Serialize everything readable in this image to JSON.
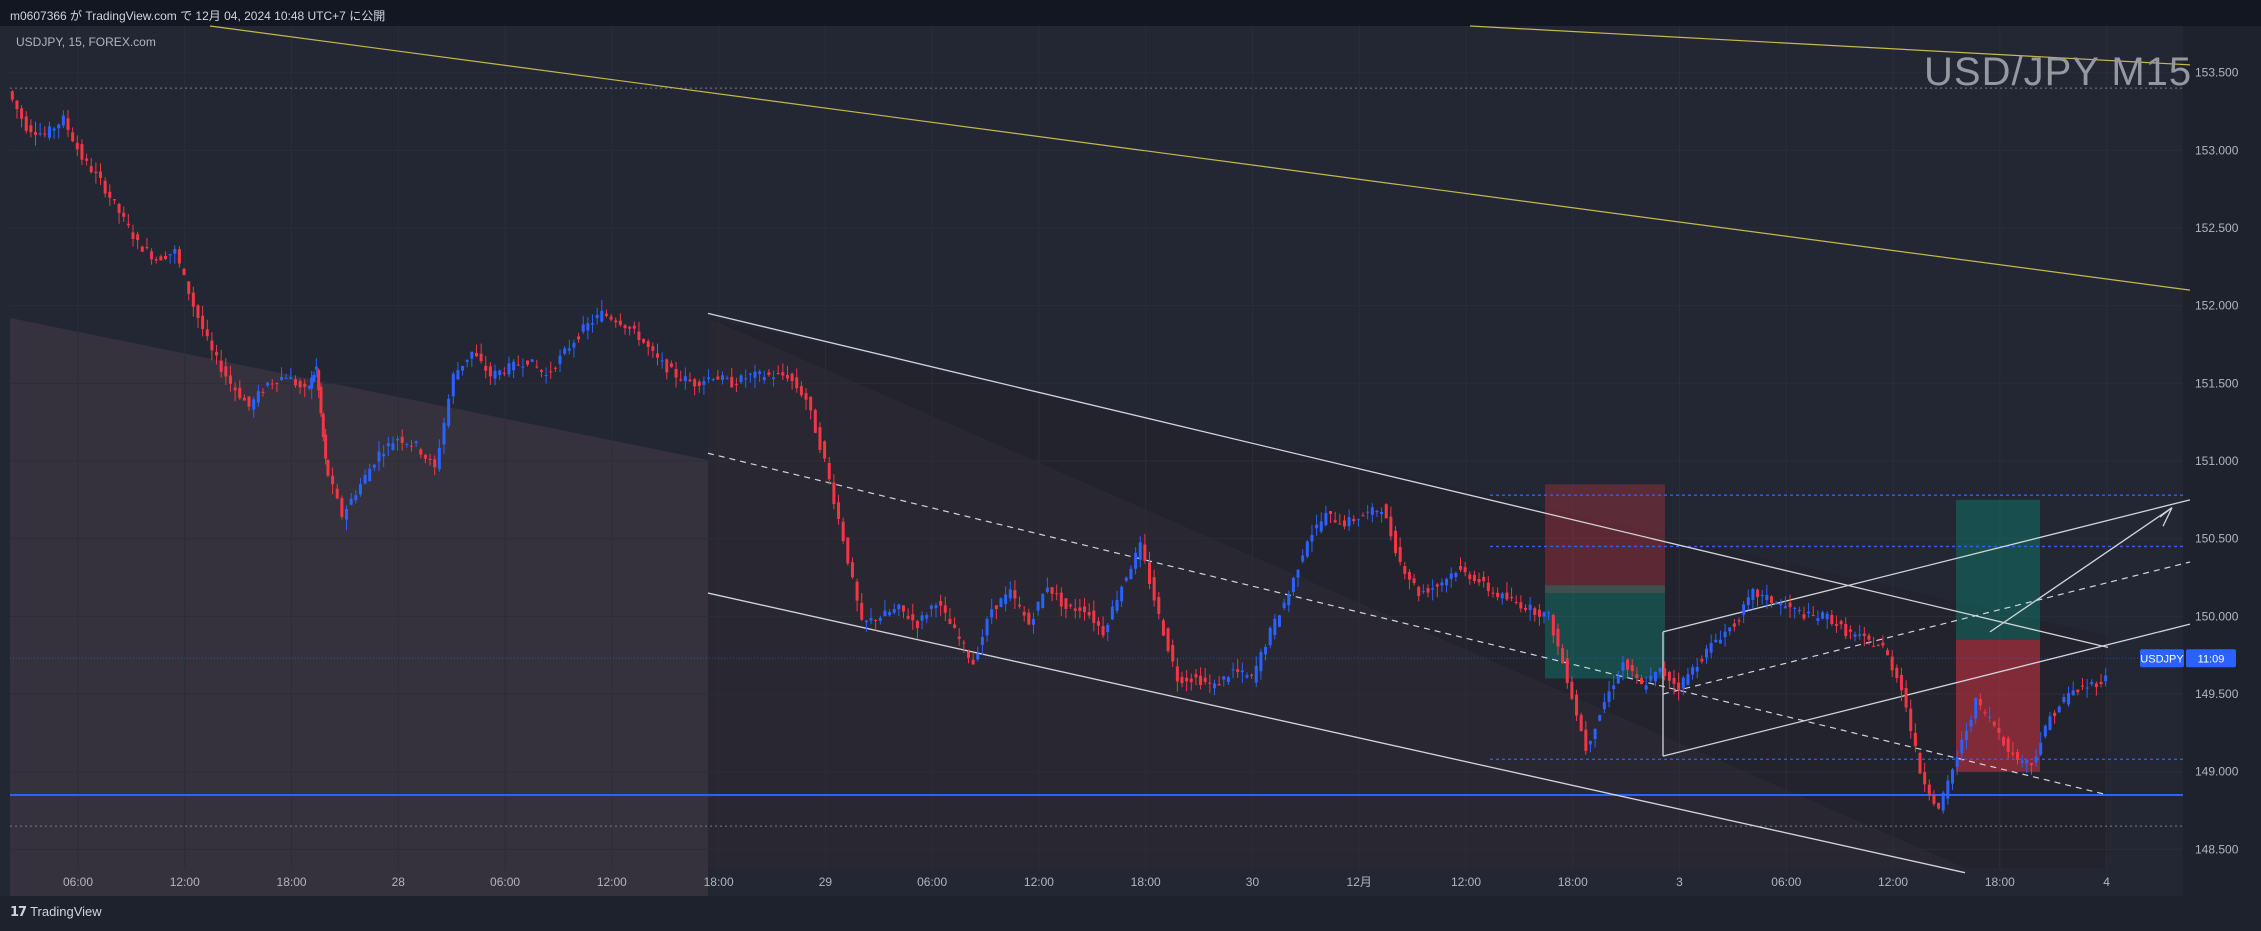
{
  "header": {
    "publish_line": "m0607366 が TradingView.com で 12月 04, 2024 10:48 UTC+7 に公開"
  },
  "symbol_line": "USDJPY, 15, FOREX.com",
  "watermark": "USD/JPY M15",
  "footer": {
    "logo_icon": "tradingview-logo-icon",
    "logo_text": "TradingView"
  },
  "colors": {
    "background": "#1e222d",
    "chart_bg": "#242733",
    "up": "#2962ff",
    "down": "#f23645",
    "trend_yellow": "#c8b84a",
    "channel_white": "#d1d4dc",
    "hline_blue": "#2962ff",
    "price_tag": "#2962ff"
  },
  "price_tag": {
    "symbol": "USDJPY",
    "value": "11:09"
  },
  "chart_data": {
    "type": "candlestick",
    "symbol": "USDJPY",
    "interval": "15",
    "ylim": [
      148.2,
      153.8
    ],
    "y_ticks": [
      "153.500",
      "153.000",
      "152.500",
      "152.000",
      "151.500",
      "151.000",
      "150.500",
      "150.000",
      "149.500",
      "149.000",
      "148.500"
    ],
    "x_ticks": [
      "06:00",
      "12:00",
      "18:00",
      "28",
      "06:00",
      "12:00",
      "18:00",
      "29",
      "06:00",
      "12:00",
      "18:00",
      "30",
      "12月",
      "12:00",
      "18:00",
      "3",
      "06:00",
      "12:00",
      "18:00",
      "4"
    ],
    "current_price_line": 149.73,
    "horizontal_levels": [
      148.85,
      148.65,
      153.4
    ],
    "price_path": [
      [
        0,
        153.38
      ],
      [
        2,
        153.15
      ],
      [
        4,
        153.1
      ],
      [
        6,
        153.2
      ],
      [
        8,
        152.95
      ],
      [
        10,
        152.8
      ],
      [
        12,
        152.6
      ],
      [
        14,
        152.4
      ],
      [
        16,
        152.3
      ],
      [
        18,
        152.35
      ],
      [
        20,
        152.0
      ],
      [
        22,
        151.7
      ],
      [
        24,
        151.5
      ],
      [
        26,
        151.35
      ],
      [
        28,
        151.5
      ],
      [
        30,
        151.55
      ],
      [
        32,
        151.45
      ],
      [
        33,
        151.6
      ],
      [
        34,
        151.0
      ],
      [
        36,
        150.65
      ],
      [
        38,
        150.85
      ],
      [
        40,
        151.05
      ],
      [
        42,
        151.15
      ],
      [
        44,
        151.1
      ],
      [
        46,
        150.95
      ],
      [
        48,
        151.55
      ],
      [
        50,
        151.7
      ],
      [
        52,
        151.55
      ],
      [
        54,
        151.6
      ],
      [
        56,
        151.65
      ],
      [
        58,
        151.55
      ],
      [
        60,
        151.7
      ],
      [
        62,
        151.85
      ],
      [
        64,
        151.95
      ],
      [
        66,
        151.9
      ],
      [
        68,
        151.8
      ],
      [
        70,
        151.65
      ],
      [
        72,
        151.55
      ],
      [
        74,
        151.5
      ],
      [
        76,
        151.55
      ],
      [
        78,
        151.5
      ],
      [
        80,
        151.55
      ],
      [
        82,
        151.55
      ],
      [
        84,
        151.55
      ],
      [
        86,
        151.4
      ],
      [
        88,
        151.0
      ],
      [
        90,
        150.5
      ],
      [
        92,
        149.95
      ],
      [
        94,
        150.0
      ],
      [
        96,
        150.05
      ],
      [
        98,
        149.95
      ],
      [
        100,
        150.1
      ],
      [
        102,
        149.9
      ],
      [
        104,
        149.7
      ],
      [
        106,
        150.05
      ],
      [
        108,
        150.15
      ],
      [
        110,
        149.95
      ],
      [
        112,
        150.2
      ],
      [
        114,
        150.05
      ],
      [
        116,
        150.05
      ],
      [
        118,
        149.9
      ],
      [
        120,
        150.2
      ],
      [
        122,
        150.45
      ],
      [
        124,
        150.0
      ],
      [
        126,
        149.6
      ],
      [
        128,
        149.6
      ],
      [
        130,
        149.55
      ],
      [
        132,
        149.65
      ],
      [
        134,
        149.6
      ],
      [
        136,
        149.9
      ],
      [
        138,
        150.15
      ],
      [
        140,
        150.5
      ],
      [
        142,
        150.65
      ],
      [
        144,
        150.6
      ],
      [
        146,
        150.65
      ],
      [
        148,
        150.7
      ],
      [
        150,
        150.35
      ],
      [
        152,
        150.15
      ],
      [
        154,
        150.2
      ],
      [
        156,
        150.3
      ],
      [
        158,
        150.25
      ],
      [
        160,
        150.15
      ],
      [
        162,
        150.1
      ],
      [
        164,
        150.05
      ],
      [
        166,
        150.0
      ],
      [
        168,
        149.6
      ],
      [
        170,
        149.15
      ],
      [
        172,
        149.45
      ],
      [
        174,
        149.7
      ],
      [
        176,
        149.55
      ],
      [
        178,
        149.65
      ],
      [
        180,
        149.55
      ],
      [
        182,
        149.7
      ],
      [
        184,
        149.85
      ],
      [
        186,
        149.95
      ],
      [
        188,
        150.15
      ],
      [
        190,
        150.1
      ],
      [
        192,
        150.05
      ],
      [
        194,
        150.0
      ],
      [
        196,
        150.0
      ],
      [
        198,
        149.9
      ],
      [
        200,
        149.85
      ],
      [
        202,
        149.8
      ],
      [
        204,
        149.55
      ],
      [
        206,
        149.0
      ],
      [
        208,
        148.75
      ],
      [
        210,
        149.1
      ],
      [
        212,
        149.45
      ],
      [
        214,
        149.3
      ],
      [
        216,
        149.1
      ],
      [
        218,
        149.05
      ],
      [
        220,
        149.35
      ],
      [
        222,
        149.5
      ],
      [
        224,
        149.55
      ],
      [
        226,
        149.6
      ]
    ]
  }
}
